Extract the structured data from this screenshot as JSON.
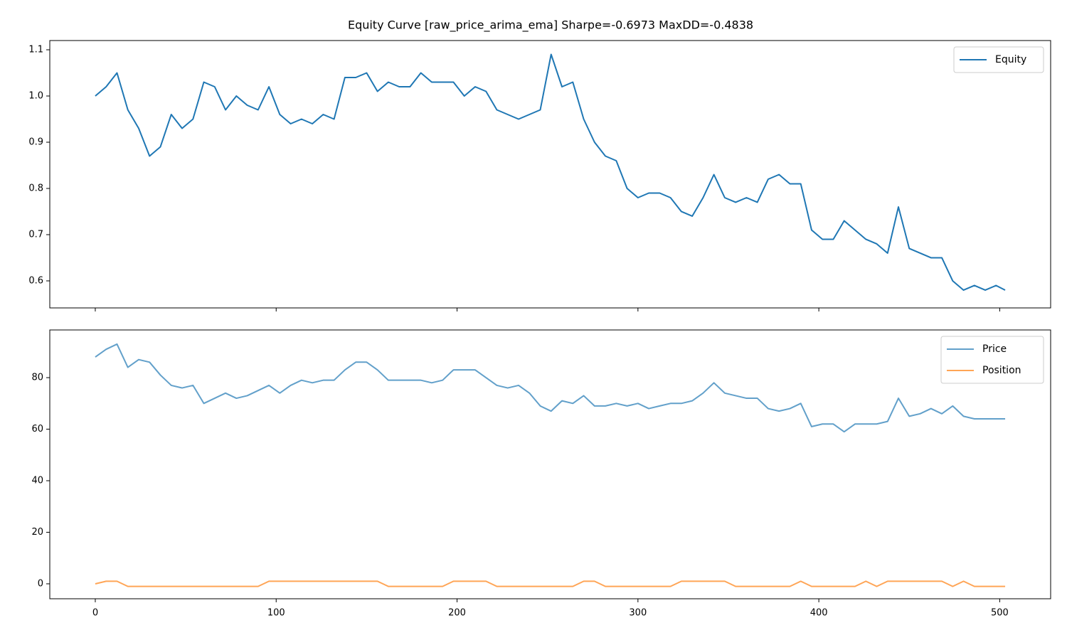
{
  "chart_data": [
    {
      "type": "line",
      "title": "Equity Curve [raw_price_arima_ema]  Sharpe=-0.6973  MaxDD=-0.4838",
      "x": [
        0,
        6,
        12,
        18,
        24,
        30,
        36,
        42,
        48,
        54,
        60,
        66,
        72,
        78,
        84,
        90,
        96,
        102,
        108,
        114,
        120,
        126,
        132,
        138,
        144,
        150,
        156,
        162,
        168,
        174,
        180,
        186,
        192,
        198,
        204,
        210,
        216,
        222,
        228,
        234,
        240,
        246,
        252,
        258,
        264,
        270,
        276,
        282,
        288,
        294,
        300,
        306,
        312,
        318,
        324,
        330,
        336,
        342,
        348,
        354,
        360,
        366,
        372,
        378,
        384,
        390,
        396,
        402,
        408,
        414,
        420,
        426,
        432,
        438,
        444,
        450,
        456,
        462,
        468,
        474,
        480,
        486,
        492,
        498,
        503
      ],
      "series": [
        {
          "name": "Equity",
          "color": "#1f77b4",
          "opacity": 1,
          "values": [
            1.0,
            1.02,
            1.05,
            0.97,
            0.93,
            0.87,
            0.89,
            0.96,
            0.93,
            0.95,
            1.03,
            1.02,
            0.97,
            1.0,
            0.98,
            0.97,
            1.02,
            0.96,
            0.94,
            0.95,
            0.94,
            0.96,
            0.95,
            1.04,
            1.04,
            1.05,
            1.01,
            1.03,
            1.02,
            1.02,
            1.05,
            1.03,
            1.03,
            1.03,
            1.0,
            1.02,
            1.01,
            0.97,
            0.96,
            0.95,
            0.96,
            0.97,
            1.09,
            1.02,
            1.03,
            0.95,
            0.9,
            0.87,
            0.86,
            0.8,
            0.78,
            0.79,
            0.79,
            0.78,
            0.75,
            0.74,
            0.78,
            0.83,
            0.78,
            0.77,
            0.78,
            0.77,
            0.82,
            0.83,
            0.81,
            0.81,
            0.71,
            0.69,
            0.69,
            0.73,
            0.71,
            0.69,
            0.68,
            0.66,
            0.76,
            0.67,
            0.66,
            0.65,
            0.65,
            0.6,
            0.58,
            0.59,
            0.58,
            0.59,
            0.58
          ]
        }
      ],
      "xlim": [
        -25.15,
        528.15
      ],
      "ylim": [
        0.5415,
        1.12
      ],
      "yticks": [
        0.6,
        0.7,
        0.8,
        0.9,
        {
          "value": 1,
          "label": "1.0"
        },
        1.1
      ],
      "legend": "upper right",
      "grid": false
    },
    {
      "type": "line",
      "x": [
        0,
        6,
        12,
        18,
        24,
        30,
        36,
        42,
        48,
        54,
        60,
        66,
        72,
        78,
        84,
        90,
        96,
        102,
        108,
        114,
        120,
        126,
        132,
        138,
        144,
        150,
        156,
        162,
        168,
        174,
        180,
        186,
        192,
        198,
        204,
        210,
        216,
        222,
        228,
        234,
        240,
        246,
        252,
        258,
        264,
        270,
        276,
        282,
        288,
        294,
        300,
        306,
        312,
        318,
        324,
        330,
        336,
        342,
        348,
        354,
        360,
        366,
        372,
        378,
        384,
        390,
        396,
        402,
        408,
        414,
        420,
        426,
        432,
        438,
        444,
        450,
        456,
        462,
        468,
        474,
        480,
        486,
        492,
        498,
        503
      ],
      "series": [
        {
          "name": "Price",
          "color": "#1f77b4",
          "opacity": 0.7,
          "values": [
            88,
            91,
            93,
            84,
            87,
            86,
            81,
            77,
            76,
            77,
            70,
            72,
            74,
            72,
            73,
            75,
            77,
            74,
            77,
            79,
            78,
            79,
            79,
            83,
            86,
            86,
            83,
            79,
            79,
            79,
            79,
            78,
            79,
            83,
            83,
            83,
            80,
            77,
            76,
            77,
            74,
            69,
            67,
            71,
            70,
            73,
            69,
            69,
            70,
            69,
            70,
            68,
            69,
            70,
            70,
            71,
            74,
            78,
            74,
            73,
            72,
            72,
            68,
            67,
            68,
            70,
            61,
            62,
            62,
            59,
            62,
            62,
            62,
            63,
            72,
            65,
            66,
            68,
            66,
            69,
            65,
            64,
            64,
            64,
            64
          ]
        },
        {
          "name": "Position",
          "color": "#ff7f0e",
          "opacity": 0.7,
          "values": [
            0,
            1,
            1,
            -1,
            -1,
            -1,
            -1,
            -1,
            -1,
            -1,
            -1,
            -1,
            -1,
            -1,
            -1,
            -1,
            1,
            1,
            1,
            1,
            1,
            1,
            1,
            1,
            1,
            1,
            1,
            -1,
            -1,
            -1,
            -1,
            -1,
            -1,
            1,
            1,
            1,
            1,
            -1,
            -1,
            -1,
            -1,
            -1,
            -1,
            -1,
            -1,
            1,
            1,
            -1,
            -1,
            -1,
            -1,
            -1,
            -1,
            -1,
            1,
            1,
            1,
            1,
            1,
            -1,
            -1,
            -1,
            -1,
            -1,
            -1,
            1,
            -1,
            -1,
            -1,
            -1,
            -1,
            1,
            -1,
            1,
            1,
            1,
            1,
            1,
            1,
            -1,
            1,
            -1,
            -1,
            -1,
            -1
          ]
        }
      ],
      "xlim": [
        -25.15,
        528.15
      ],
      "ylim": [
        -5.8,
        98.5
      ],
      "xticks": [
        0,
        100,
        200,
        300,
        400,
        500
      ],
      "yticks": [
        0,
        20,
        40,
        60,
        80
      ],
      "legend": "upper right",
      "grid": false
    }
  ]
}
